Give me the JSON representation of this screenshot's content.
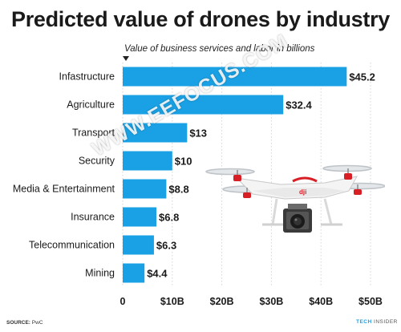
{
  "chart_data": {
    "type": "bar",
    "orientation": "horizontal",
    "title": "Predicted value of drones by industry",
    "subtitle": "Value of business services and labor in billions",
    "categories": [
      "Infastructure",
      "Agriculture",
      "Transport",
      "Security",
      "Media & Entertainment",
      "Insurance",
      "Telecommunication",
      "Mining"
    ],
    "values": [
      45.2,
      32.4,
      13,
      10,
      8.8,
      6.8,
      6.3,
      4.4
    ],
    "value_labels": [
      "$45.2",
      "$32.4",
      "$13",
      "$10",
      "$8.8",
      "$6.8",
      "$6.3",
      "$4.4"
    ],
    "xlim": [
      0,
      50
    ],
    "x_ticks": [
      0,
      10,
      20,
      30,
      40,
      50
    ],
    "x_tick_labels": [
      "0",
      "$10B",
      "$20B",
      "$30B",
      "$40B",
      "$50B"
    ],
    "bar_color": "#1aa1e5",
    "grid": true
  },
  "watermark": "WWW.EEFOCUS.COM",
  "footer": {
    "source_label": "SOURCE:",
    "source_text": "PwC",
    "brand_part1": "TECH",
    "brand_part2": "INSIDER"
  },
  "image": {
    "subject": "quadcopter-drone",
    "drone_brand_text": "dji"
  }
}
